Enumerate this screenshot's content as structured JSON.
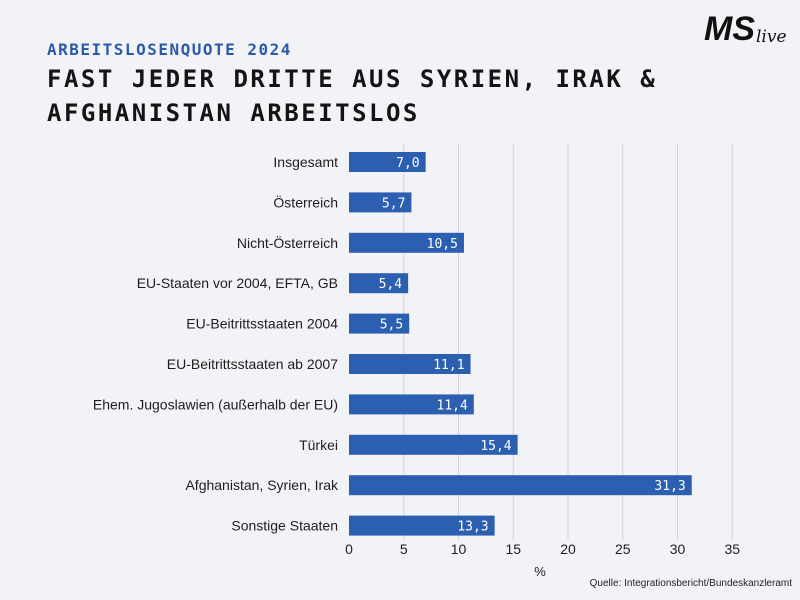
{
  "header": {
    "subtitle": "ARBEITSLOSENQUOTE 2024",
    "title": "FAST JEDER DRITTE AUS SYRIEN, IRAK & AFGHANISTAN ARBEITSLOS"
  },
  "logo": {
    "text_main": "MS",
    "text_script": "live"
  },
  "source": "Quelle: Integrationsbericht/Bundeskanzleramt",
  "colors": {
    "bar": "#2d5fb0",
    "grid": "#d2d4da",
    "background": "#f2f3f7"
  },
  "chart_data": {
    "type": "bar",
    "orientation": "horizontal",
    "title": "FAST JEDER DRITTE AUS SYRIEN, IRAK & AFGHANISTAN ARBEITSLOS",
    "subtitle": "ARBEITSLOSENQUOTE 2024",
    "categories": [
      "Insgesamt",
      "Österreich",
      "Nicht-Österreich",
      "EU-Staaten vor 2004, EFTA, GB",
      "EU-Beitrittsstaaten 2004",
      "EU-Beitrittsstaaten ab 2007",
      "Ehem. Jugoslawien (außerhalb der EU)",
      "Türkei",
      "Afghanistan, Syrien, Irak",
      "Sonstige Staaten"
    ],
    "values": [
      7.0,
      5.7,
      10.5,
      5.4,
      5.5,
      11.1,
      11.4,
      15.4,
      31.3,
      13.3
    ],
    "value_labels": [
      "7,0",
      "5,7",
      "10,5",
      "5,4",
      "5,5",
      "11,1",
      "11,4",
      "15,4",
      "31,3",
      "13,3"
    ],
    "xlabel": "%",
    "ylabel": "",
    "xlim": [
      0,
      35
    ],
    "xticks": [
      0,
      5,
      10,
      15,
      20,
      25,
      30,
      35
    ],
    "grid": true,
    "legend": "none"
  }
}
